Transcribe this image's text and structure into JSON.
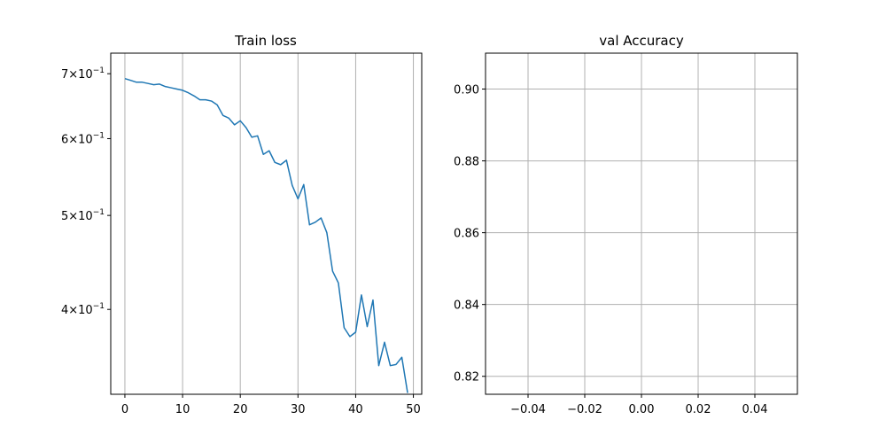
{
  "chart_data": [
    {
      "type": "line",
      "title": "Train loss",
      "xlabel": "",
      "ylabel": "",
      "yscale": "log",
      "grid": "x-only",
      "xlim": [
        -2.45,
        51.45
      ],
      "ylim": [
        0.327,
        0.735
      ],
      "x_ticks": [
        0,
        10,
        20,
        30,
        40,
        50
      ],
      "x_tick_labels": [
        "0",
        "10",
        "20",
        "30",
        "40",
        "50"
      ],
      "y_ticks": [
        0.7,
        0.6,
        0.5,
        0.4
      ],
      "y_tick_labels": [
        {
          "base": "7",
          "exp": "−1"
        },
        {
          "base": "6",
          "exp": "−1"
        },
        {
          "base": "5",
          "exp": "−1"
        },
        {
          "base": "4",
          "exp": "−1"
        }
      ],
      "line_color": "#1f77b4",
      "series": [
        {
          "x": [
            0,
            1,
            2,
            3,
            4,
            5,
            6,
            7,
            8,
            9,
            10,
            11,
            12,
            13,
            14,
            15,
            16,
            17,
            18,
            19,
            20,
            21,
            22,
            23,
            24,
            25,
            26,
            27,
            28,
            29,
            30,
            31,
            32,
            33,
            34,
            35,
            36,
            37,
            38,
            39,
            40,
            41,
            42,
            43,
            44,
            45,
            46,
            47,
            48,
            49
          ],
          "values": [
            0.692,
            0.689,
            0.686,
            0.686,
            0.684,
            0.682,
            0.683,
            0.679,
            0.677,
            0.675,
            0.673,
            0.669,
            0.664,
            0.658,
            0.658,
            0.656,
            0.65,
            0.634,
            0.63,
            0.62,
            0.626,
            0.616,
            0.602,
            0.604,
            0.578,
            0.583,
            0.567,
            0.564,
            0.57,
            0.537,
            0.52,
            0.538,
            0.489,
            0.492,
            0.497,
            0.48,
            0.438,
            0.426,
            0.383,
            0.375,
            0.379,
            0.414,
            0.384,
            0.409,
            0.35,
            0.37,
            0.35,
            0.351,
            0.357,
            0.328
          ]
        }
      ]
    },
    {
      "type": "line",
      "title": "val Accuracy",
      "xlabel": "",
      "ylabel": "",
      "grid": "both",
      "xlim": [
        -0.055,
        0.055
      ],
      "ylim": [
        0.815,
        0.91
      ],
      "x_ticks": [
        -0.04,
        -0.02,
        0.0,
        0.02,
        0.04
      ],
      "x_tick_labels": [
        "−0.04",
        "−0.02",
        "0.00",
        "0.02",
        "0.04"
      ],
      "y_ticks": [
        0.82,
        0.84,
        0.86,
        0.88,
        0.9
      ],
      "y_tick_labels": [
        "0.82",
        "0.84",
        "0.86",
        "0.88",
        "0.90"
      ],
      "series": []
    }
  ]
}
